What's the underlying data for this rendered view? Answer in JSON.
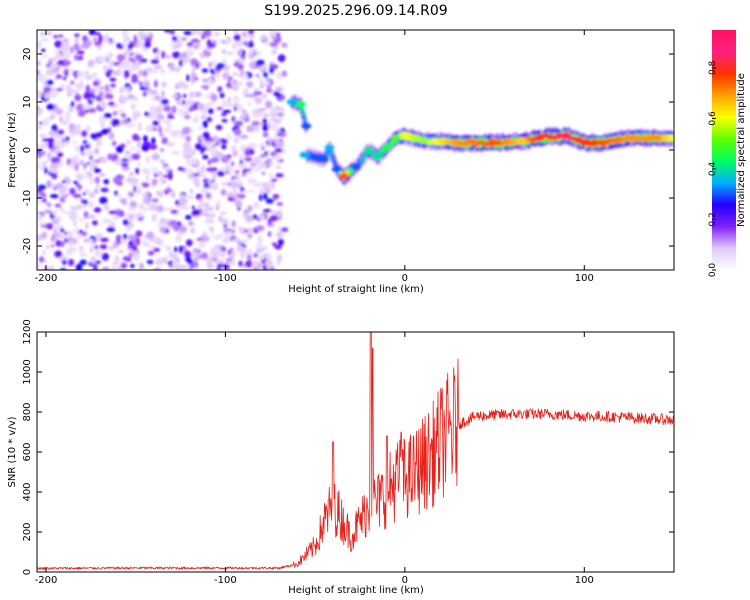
{
  "figure_title": "S199.2025.296.09.14.R09",
  "chart_data": [
    {
      "type": "heatmap",
      "title": "S199.2025.296.09.14.R09",
      "xlabel": "Height of straight line (km)",
      "ylabel": "Frequency (Hz)",
      "xlim": [
        -205,
        150
      ],
      "ylim": [
        -25,
        25
      ],
      "xticks": [
        -200,
        -100,
        0,
        100
      ],
      "yticks": [
        -20,
        -10,
        0,
        10,
        20
      ],
      "colorbar": {
        "label": "Normalized spectral amplitude",
        "range": [
          0,
          0.95
        ],
        "ticks": [
          "0.0",
          "0.2",
          "0.4",
          "0.6",
          "0.8"
        ],
        "colormap": [
          "#ffffff",
          "#e0c8f8",
          "#8020ff",
          "#2000ff",
          "#00b0ff",
          "#00ff60",
          "#60ff00",
          "#ffff00",
          "#ffa000",
          "#ff3000",
          "#ff2080",
          "#ff1060"
        ]
      },
      "features": {
        "noise_region_x": [
          -205,
          -67
        ],
        "noise_freq_span": [
          -25,
          25
        ],
        "ridge": [
          {
            "x": -63,
            "f": 10.0,
            "a": 0.35
          },
          {
            "x": -58,
            "f": 9.5,
            "a": 0.45
          },
          {
            "x": -55,
            "f": 5.0,
            "a": 0.3
          },
          {
            "x": -56,
            "f": -1.0,
            "a": 0.35
          },
          {
            "x": -50,
            "f": -1.5,
            "a": 0.3
          },
          {
            "x": -45,
            "f": -2.0,
            "a": 0.3
          },
          {
            "x": -42,
            "f": 0.5,
            "a": 0.35
          },
          {
            "x": -38,
            "f": -4.0,
            "a": 0.3
          },
          {
            "x": -34,
            "f": -5.5,
            "a": 0.75
          },
          {
            "x": -27,
            "f": -3.5,
            "a": 0.3
          },
          {
            "x": -20,
            "f": 0.0,
            "a": 0.4
          },
          {
            "x": -15,
            "f": -1.5,
            "a": 0.4
          },
          {
            "x": -10,
            "f": 0.5,
            "a": 0.45
          },
          {
            "x": -5,
            "f": 2.5,
            "a": 0.5
          },
          {
            "x": 0,
            "f": 3.0,
            "a": 0.6
          },
          {
            "x": 10,
            "f": 2.0,
            "a": 0.55
          },
          {
            "x": 30,
            "f": 1.5,
            "a": 0.7
          },
          {
            "x": 50,
            "f": 1.5,
            "a": 0.75
          },
          {
            "x": 65,
            "f": 1.8,
            "a": 0.65
          },
          {
            "x": 75,
            "f": 2.5,
            "a": 0.8
          },
          {
            "x": 90,
            "f": 3.0,
            "a": 0.85
          },
          {
            "x": 100,
            "f": 1.5,
            "a": 0.8
          },
          {
            "x": 110,
            "f": 1.5,
            "a": 0.75
          },
          {
            "x": 125,
            "f": 2.5,
            "a": 0.7
          },
          {
            "x": 140,
            "f": 2.5,
            "a": 0.7
          },
          {
            "x": 150,
            "f": 2.5,
            "a": 0.6
          }
        ]
      }
    },
    {
      "type": "line",
      "xlabel": "Height of straight line (km)",
      "ylabel": "SNR (10 * v/v)",
      "xlim": [
        -205,
        150
      ],
      "ylim": [
        0,
        1200
      ],
      "xticks": [
        -200,
        -100,
        0,
        100
      ],
      "yticks": [
        0,
        200,
        400,
        600,
        800,
        1000,
        1200
      ],
      "series": [
        {
          "name": "SNR",
          "color": "#e8201a",
          "x": [
            -205,
            -150,
            -100,
            -70,
            -60,
            -50,
            -45,
            -40,
            -35,
            -30,
            -25,
            -20,
            -15,
            -10,
            -5,
            0,
            5,
            10,
            15,
            20,
            25,
            30,
            40,
            60,
            80,
            100,
            120,
            150
          ],
          "y": [
            18,
            20,
            20,
            20,
            40,
            130,
            250,
            340,
            260,
            180,
            250,
            330,
            350,
            400,
            460,
            470,
            490,
            540,
            580,
            650,
            700,
            740,
            780,
            790,
            790,
            780,
            775,
            760
          ],
          "spikes": [
            {
              "x": -40,
              "y": 650
            },
            {
              "x": -19,
              "y": 1200
            },
            {
              "x": -18,
              "y": 1120
            },
            {
              "x": -10,
              "y": 680
            },
            {
              "x": -2,
              "y": 700
            }
          ]
        }
      ]
    }
  ]
}
